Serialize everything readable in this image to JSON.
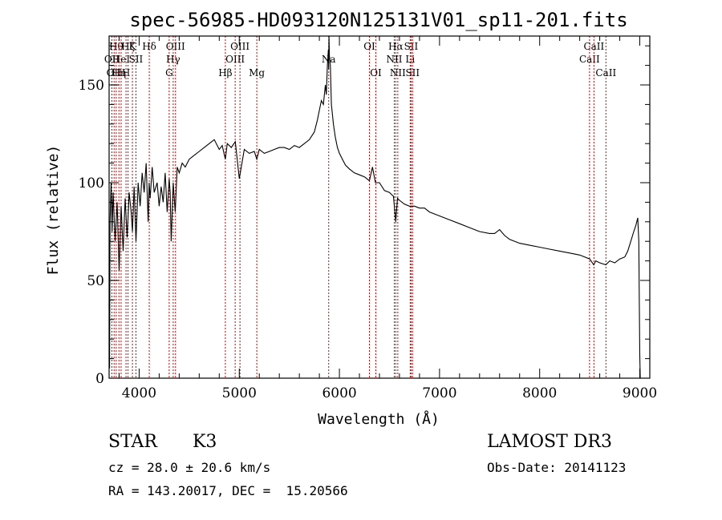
{
  "chart_data": {
    "type": "line",
    "title": "spec-56985-HD093120N125131V01_sp11-201.fits",
    "xlabel": "Wavelength (Å)",
    "ylabel": "Flux (relative)",
    "xlim": [
      3700,
      9100
    ],
    "ylim": [
      0,
      175
    ],
    "xticks": [
      4000,
      5000,
      6000,
      7000,
      8000,
      9000
    ],
    "xtick_labels": [
      "4000",
      "5000",
      "6000",
      "7000",
      "8000",
      "9000"
    ],
    "yticks": [
      0,
      50,
      100,
      150
    ],
    "ytick_labels": [
      "0",
      "50",
      "100",
      "150"
    ],
    "grid": false,
    "series": [
      {
        "name": "flux",
        "x": [
          3700,
          3705,
          3710,
          3720,
          3730,
          3740,
          3760,
          3780,
          3800,
          3820,
          3840,
          3860,
          3880,
          3900,
          3920,
          3933,
          3950,
          3968,
          3990,
          4010,
          4030,
          4050,
          4070,
          4090,
          4100,
          4110,
          4130,
          4150,
          4180,
          4200,
          4220,
          4240,
          4260,
          4280,
          4300,
          4310,
          4320,
          4340,
          4360,
          4380,
          4400,
          4430,
          4460,
          4500,
          4550,
          4600,
          4650,
          4700,
          4750,
          4800,
          4830,
          4861,
          4880,
          4920,
          4960,
          5000,
          5050,
          5100,
          5150,
          5175,
          5200,
          5250,
          5300,
          5350,
          5400,
          5450,
          5500,
          5550,
          5600,
          5650,
          5700,
          5750,
          5780,
          5800,
          5820,
          5840,
          5860,
          5870,
          5880,
          5890,
          5893,
          5896,
          5900,
          5910,
          5920,
          5940,
          5960,
          5980,
          6000,
          6030,
          6060,
          6100,
          6150,
          6200,
          6250,
          6300,
          6330,
          6360,
          6400,
          6450,
          6500,
          6540,
          6563,
          6580,
          6600,
          6650,
          6700,
          6750,
          6800,
          6850,
          6900,
          7000,
          7100,
          7200,
          7300,
          7400,
          7500,
          7550,
          7600,
          7650,
          7700,
          7800,
          7900,
          8000,
          8100,
          8200,
          8300,
          8400,
          8500,
          8540,
          8560,
          8600,
          8660,
          8700,
          8750,
          8800,
          8850,
          8880,
          8910,
          8940,
          8960,
          8980,
          8990,
          8995,
          9000,
          9005
        ],
        "y": [
          38,
          5,
          80,
          100,
          75,
          95,
          70,
          90,
          55,
          88,
          65,
          92,
          72,
          95,
          85,
          75,
          98,
          70,
          100,
          88,
          105,
          95,
          110,
          80,
          100,
          92,
          108,
          95,
          100,
          88,
          98,
          90,
          105,
          85,
          102,
          95,
          70,
          100,
          85,
          108,
          105,
          110,
          108,
          112,
          114,
          116,
          118,
          120,
          122,
          117,
          119,
          112,
          120,
          118,
          121,
          102,
          117,
          115,
          116,
          112,
          117,
          115,
          116,
          117,
          118,
          118,
          117,
          119,
          118,
          120,
          122,
          126,
          132,
          137,
          142,
          140,
          150,
          145,
          160,
          168,
          158,
          175,
          165,
          160,
          140,
          130,
          123,
          118,
          115,
          112,
          109,
          107,
          105,
          104,
          103,
          101,
          108,
          100,
          100,
          96,
          95,
          93,
          80,
          92,
          91,
          89,
          88,
          88,
          87,
          87,
          85,
          83,
          81,
          79,
          77,
          75,
          74,
          74,
          76,
          73,
          71,
          69,
          68,
          67,
          66,
          65,
          64,
          63,
          61,
          58,
          60,
          59,
          58,
          60,
          59,
          61,
          62,
          65,
          70,
          75,
          78,
          82,
          70,
          40,
          12,
          0
        ]
      }
    ],
    "line_markers": [
      {
        "x": 3728,
        "label": "OII",
        "row": 2
      },
      {
        "x": 3750,
        "label": "OII",
        "row": 3
      },
      {
        "x": 3771,
        "label": "Hθ",
        "row": 1
      },
      {
        "x": 3798,
        "label": "Hη",
        "row": 3
      },
      {
        "x": 3820,
        "label": "HeI",
        "row": 2
      },
      {
        "x": 3869,
        "label": "H",
        "row": 3
      },
      {
        "x": 3889,
        "label": "Hζ",
        "row": 1
      },
      {
        "x": 3933,
        "label": "K",
        "row": 1
      },
      {
        "x": 3968,
        "label": "SII",
        "row": 2
      },
      {
        "x": 4101,
        "label": "Hδ",
        "row": 1
      },
      {
        "x": 4300,
        "label": "G",
        "row": 3
      },
      {
        "x": 4340,
        "label": "Hγ",
        "row": 2
      },
      {
        "x": 4363,
        "label": "OIII",
        "row": 1
      },
      {
        "x": 4861,
        "label": "Hβ",
        "row": 3
      },
      {
        "x": 4959,
        "label": "OIII",
        "row": 2
      },
      {
        "x": 5007,
        "label": "OIII",
        "row": 1
      },
      {
        "x": 5175,
        "label": "Mg",
        "row": 3
      },
      {
        "x": 5893,
        "label": "Na",
        "row": 2
      },
      {
        "x": 6300,
        "label": "OI",
        "row": 1
      },
      {
        "x": 6364,
        "label": "OI",
        "row": 3
      },
      {
        "x": 6548,
        "label": "NII",
        "row": 2
      },
      {
        "x": 6563,
        "label": "Hα",
        "row": 1
      },
      {
        "x": 6583,
        "label": "NII",
        "row": 3
      },
      {
        "x": 6707,
        "label": "Li",
        "row": 2
      },
      {
        "x": 6716,
        "label": "SII",
        "row": 1
      },
      {
        "x": 6731,
        "label": "SII",
        "row": 3
      },
      {
        "x": 8498,
        "label": "CaII",
        "row": 2
      },
      {
        "x": 8542,
        "label": "CaII",
        "row": 1
      },
      {
        "x": 8662,
        "label": "CaII",
        "row": 3
      }
    ],
    "colors": {
      "spectrum": "#000000",
      "marker": "#cc0000",
      "axes": "#000000"
    }
  },
  "info": {
    "object_class": "STAR",
    "subclass": "K3",
    "survey": "LAMOST DR3",
    "redshift_line": "cz = 28.0 ± 20.6 km/s",
    "obs_date_line": "Obs-Date: 20141123",
    "coords_line": "RA = 143.20017, DEC =  15.20566"
  }
}
